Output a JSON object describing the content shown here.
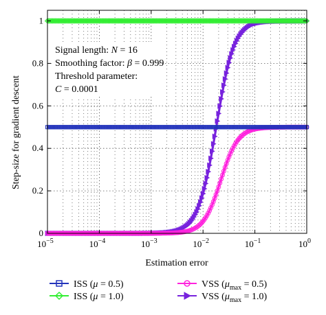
{
  "chart_data": {
    "type": "line",
    "xlabel": "Estimation error",
    "ylabel": "Step-size for gradient descent",
    "xscale": "log",
    "xlim": [
      1e-05,
      1
    ],
    "ylim": [
      0,
      1.05
    ],
    "grid": true,
    "x_ticks": [
      1e-05,
      0.0001,
      0.001,
      0.01,
      0.1,
      1
    ],
    "x_tick_bases": [
      "10",
      "10",
      "10",
      "10",
      "10",
      "10"
    ],
    "x_tick_exps": [
      "−5",
      "−4",
      "−3",
      "−2",
      "−1",
      "0"
    ],
    "y_ticks": [
      0,
      0.2,
      0.4,
      0.6,
      0.8,
      1
    ],
    "y_tick_labels": [
      "0",
      "0.2",
      "0.4",
      "0.6",
      "0.8",
      "1"
    ],
    "annotation": {
      "line1": {
        "prefix": "Signal length: ",
        "symbol": "N",
        "suffix": " = 16"
      },
      "line2": {
        "prefix": "Smoothing factor: ",
        "symbol": "β",
        "suffix": " = 0.999"
      },
      "line3": {
        "text": "Threshold parameter:"
      },
      "line4": {
        "symbol": "C",
        "suffix": " = 0.0001"
      }
    },
    "series": [
      {
        "label_prefix": "ISS (",
        "label_symbol": "μ",
        "label_suffix": " = 0.5)",
        "color": "#2233bb",
        "marker": "square",
        "kind": "constant",
        "level": 0.5
      },
      {
        "label_prefix": "ISS (",
        "label_symbol": "μ",
        "label_suffix": " = 1.0)",
        "color": "#33ee33",
        "marker": "diamond",
        "kind": "constant",
        "level": 1.0
      },
      {
        "label_prefix": "VSS (",
        "label_symbol": "μ",
        "label_sub": "max",
        "label_suffix": " = 0.5)",
        "color": "#ff22dd",
        "marker": "circle",
        "kind": "sigmoid",
        "level": 0.5,
        "midpoint": 0.022,
        "steepness": 2.6
      },
      {
        "label_prefix": "VSS (",
        "label_symbol": "μ",
        "label_sub": "max",
        "label_suffix": " = 1.0)",
        "color": "#7722dd",
        "marker": "triangle",
        "kind": "sigmoid",
        "level": 1.0,
        "midpoint": 0.018,
        "steepness": 2.5
      }
    ]
  }
}
